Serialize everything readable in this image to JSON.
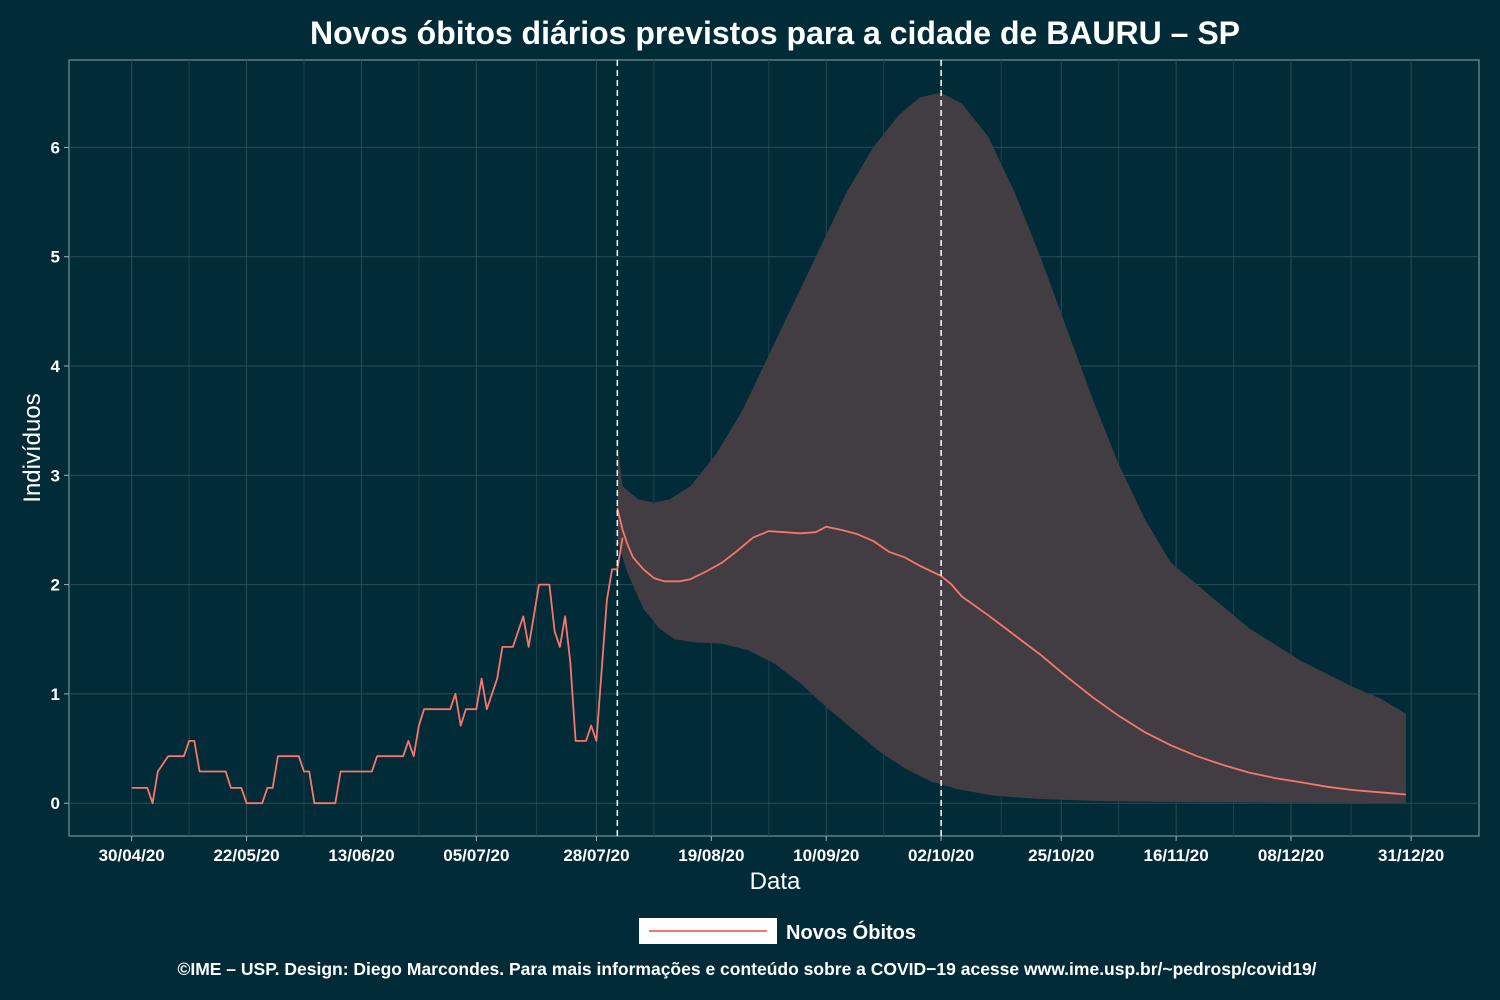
{
  "chart_data": {
    "type": "line",
    "title": "Novos óbitos diários previstos para a cidade de BAURU – SP",
    "xlabel": "Data",
    "ylabel": "Indivíduos",
    "x_ticks": [
      "30/04/20",
      "22/05/20",
      "13/06/20",
      "05/07/20",
      "28/07/20",
      "19/08/20",
      "10/09/20",
      "02/10/20",
      "25/10/20",
      "16/11/20",
      "08/12/20",
      "31/12/20"
    ],
    "y_ticks": [
      "0",
      "1",
      "2",
      "3",
      "4",
      "5",
      "6"
    ],
    "ylim": [
      -0.3,
      6.8
    ],
    "xlim": [
      "2020-04-18",
      "2021-01-13"
    ],
    "grid": true,
    "vertical_lines": [
      "2020-08-01",
      "2020-10-02"
    ],
    "legend_position": "bottom",
    "series": [
      {
        "name": "Novos Óbitos",
        "color": "#f8766d",
        "observed": [
          [
            "2020-04-30",
            0.14
          ],
          [
            "2020-05-03",
            0.14
          ],
          [
            "2020-05-04",
            0
          ],
          [
            "2020-05-05",
            0.29
          ],
          [
            "2020-05-07",
            0.43
          ],
          [
            "2020-05-10",
            0.43
          ],
          [
            "2020-05-11",
            0.57
          ],
          [
            "2020-05-12",
            0.57
          ],
          [
            "2020-05-13",
            0.29
          ],
          [
            "2020-05-18",
            0.29
          ],
          [
            "2020-05-19",
            0.14
          ],
          [
            "2020-05-21",
            0.14
          ],
          [
            "2020-05-22",
            0
          ],
          [
            "2020-05-25",
            0
          ],
          [
            "2020-05-26",
            0.14
          ],
          [
            "2020-05-27",
            0.14
          ],
          [
            "2020-05-28",
            0.43
          ],
          [
            "2020-06-01",
            0.43
          ],
          [
            "2020-06-02",
            0.29
          ],
          [
            "2020-06-03",
            0.29
          ],
          [
            "2020-06-04",
            0
          ],
          [
            "2020-06-08",
            0
          ],
          [
            "2020-06-09",
            0.29
          ],
          [
            "2020-06-15",
            0.29
          ],
          [
            "2020-06-16",
            0.43
          ],
          [
            "2020-06-21",
            0.43
          ],
          [
            "2020-06-22",
            0.57
          ],
          [
            "2020-06-23",
            0.43
          ],
          [
            "2020-06-24",
            0.71
          ],
          [
            "2020-06-25",
            0.86
          ],
          [
            "2020-06-30",
            0.86
          ],
          [
            "2020-07-01",
            1.0
          ],
          [
            "2020-07-02",
            0.71
          ],
          [
            "2020-07-03",
            0.86
          ],
          [
            "2020-07-05",
            0.86
          ],
          [
            "2020-07-06",
            1.14
          ],
          [
            "2020-07-07",
            0.86
          ],
          [
            "2020-07-08",
            1.0
          ],
          [
            "2020-07-09",
            1.14
          ],
          [
            "2020-07-10",
            1.43
          ],
          [
            "2020-07-12",
            1.43
          ],
          [
            "2020-07-13",
            1.57
          ],
          [
            "2020-07-14",
            1.71
          ],
          [
            "2020-07-15",
            1.43
          ],
          [
            "2020-07-16",
            1.71
          ],
          [
            "2020-07-17",
            2.0
          ],
          [
            "2020-07-19",
            2.0
          ],
          [
            "2020-07-20",
            1.57
          ],
          [
            "2020-07-21",
            1.43
          ],
          [
            "2020-07-22",
            1.71
          ],
          [
            "2020-07-23",
            1.29
          ],
          [
            "2020-07-24",
            0.57
          ],
          [
            "2020-07-26",
            0.57
          ],
          [
            "2020-07-27",
            0.71
          ],
          [
            "2020-07-28",
            0.57
          ],
          [
            "2020-07-30",
            1.86
          ],
          [
            "2020-07-31",
            2.14
          ],
          [
            "2020-08-01",
            2.14
          ],
          [
            "2020-08-02",
            2.43
          ]
        ],
        "predicted": [
          [
            "2020-08-01",
            2.7
          ],
          [
            "2020-08-02",
            2.5
          ],
          [
            "2020-08-03",
            2.36
          ],
          [
            "2020-08-04",
            2.25
          ],
          [
            "2020-08-06",
            2.14
          ],
          [
            "2020-08-08",
            2.06
          ],
          [
            "2020-08-10",
            2.03
          ],
          [
            "2020-08-13",
            2.03
          ],
          [
            "2020-08-15",
            2.05
          ],
          [
            "2020-08-18",
            2.12
          ],
          [
            "2020-08-21",
            2.2
          ],
          [
            "2020-08-24",
            2.31
          ],
          [
            "2020-08-27",
            2.43
          ],
          [
            "2020-08-30",
            2.49
          ],
          [
            "2020-09-02",
            2.48
          ],
          [
            "2020-09-05",
            2.47
          ],
          [
            "2020-09-08",
            2.48
          ],
          [
            "2020-09-10",
            2.53
          ],
          [
            "2020-09-13",
            2.5
          ],
          [
            "2020-09-16",
            2.46
          ],
          [
            "2020-09-19",
            2.4
          ],
          [
            "2020-09-22",
            2.3
          ],
          [
            "2020-09-25",
            2.25
          ],
          [
            "2020-09-28",
            2.17
          ],
          [
            "2020-10-02",
            2.08
          ],
          [
            "2020-10-04",
            2.0
          ],
          [
            "2020-10-06",
            1.89
          ],
          [
            "2020-10-11",
            1.72
          ],
          [
            "2020-10-16",
            1.54
          ],
          [
            "2020-10-21",
            1.36
          ],
          [
            "2020-10-26",
            1.16
          ],
          [
            "2020-10-31",
            0.97
          ],
          [
            "2020-11-05",
            0.8
          ],
          [
            "2020-11-10",
            0.65
          ],
          [
            "2020-11-15",
            0.53
          ],
          [
            "2020-11-20",
            0.43
          ],
          [
            "2020-11-25",
            0.35
          ],
          [
            "2020-11-30",
            0.28
          ],
          [
            "2020-12-05",
            0.23
          ],
          [
            "2020-12-10",
            0.19
          ],
          [
            "2020-12-15",
            0.15
          ],
          [
            "2020-12-20",
            0.12
          ],
          [
            "2020-12-25",
            0.1
          ],
          [
            "2020-12-30",
            0.08
          ]
        ]
      }
    ],
    "interval": {
      "color": "#423d43",
      "upper": [
        [
          "2020-08-01",
          3.3
        ],
        [
          "2020-08-02",
          2.9
        ],
        [
          "2020-08-05",
          2.78
        ],
        [
          "2020-08-08",
          2.75
        ],
        [
          "2020-08-11",
          2.78
        ],
        [
          "2020-08-15",
          2.9
        ],
        [
          "2020-08-20",
          3.2
        ],
        [
          "2020-08-25",
          3.6
        ],
        [
          "2020-08-30",
          4.1
        ],
        [
          "2020-09-04",
          4.6
        ],
        [
          "2020-09-09",
          5.1
        ],
        [
          "2020-09-14",
          5.6
        ],
        [
          "2020-09-19",
          6.0
        ],
        [
          "2020-09-24",
          6.3
        ],
        [
          "2020-09-28",
          6.46
        ],
        [
          "2020-10-02",
          6.5
        ],
        [
          "2020-10-06",
          6.4
        ],
        [
          "2020-10-11",
          6.1
        ],
        [
          "2020-10-16",
          5.6
        ],
        [
          "2020-10-21",
          5.0
        ],
        [
          "2020-10-26",
          4.35
        ],
        [
          "2020-10-31",
          3.7
        ],
        [
          "2020-11-05",
          3.1
        ],
        [
          "2020-11-10",
          2.6
        ],
        [
          "2020-11-15",
          2.2
        ],
        [
          "2020-11-20",
          2.0
        ],
        [
          "2020-11-25",
          1.8
        ],
        [
          "2020-11-30",
          1.6
        ],
        [
          "2020-12-05",
          1.45
        ],
        [
          "2020-12-10",
          1.3
        ],
        [
          "2020-12-15",
          1.18
        ],
        [
          "2020-12-20",
          1.06
        ],
        [
          "2020-12-25",
          0.96
        ],
        [
          "2020-12-30",
          0.82
        ]
      ],
      "lower": [
        [
          "2020-08-01",
          2.4
        ],
        [
          "2020-08-03",
          2.1
        ],
        [
          "2020-08-06",
          1.78
        ],
        [
          "2020-08-09",
          1.6
        ],
        [
          "2020-08-12",
          1.5
        ],
        [
          "2020-08-16",
          1.47
        ],
        [
          "2020-08-21",
          1.46
        ],
        [
          "2020-08-26",
          1.4
        ],
        [
          "2020-08-31",
          1.28
        ],
        [
          "2020-09-05",
          1.1
        ],
        [
          "2020-09-10",
          0.88
        ],
        [
          "2020-09-15",
          0.68
        ],
        [
          "2020-09-20",
          0.48
        ],
        [
          "2020-09-25",
          0.32
        ],
        [
          "2020-09-30",
          0.2
        ],
        [
          "2020-10-05",
          0.13
        ],
        [
          "2020-10-12",
          0.07
        ],
        [
          "2020-10-20",
          0.04
        ],
        [
          "2020-11-01",
          0.02
        ],
        [
          "2020-11-20",
          0.01
        ],
        [
          "2020-12-30",
          0.0
        ]
      ]
    }
  },
  "legend": {
    "label": "Novos Óbitos"
  },
  "caption": "©IME – USP. Design: Diego Marcondes. Para mais informações e conteúdo sobre a COVID−19 acesse www.ime.usp.br/~pedrosp/covid19/"
}
